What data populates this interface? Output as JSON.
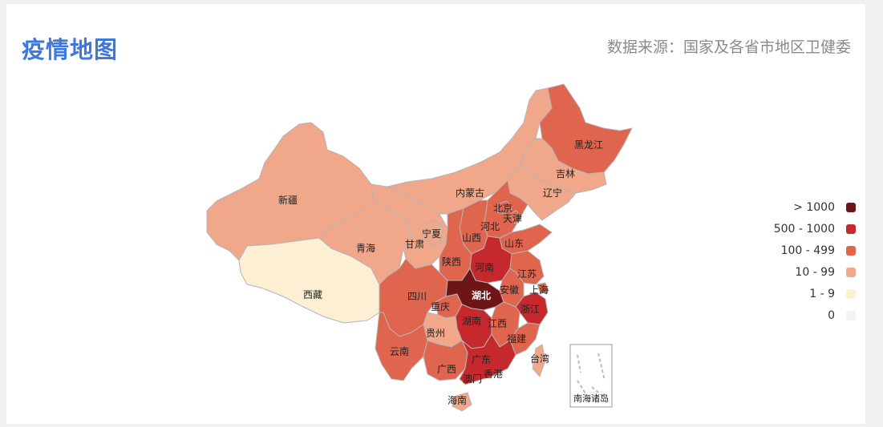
{
  "header": {
    "title": "疫情地图",
    "source": "数据来源：国家及各省市地区卫健委"
  },
  "legend": [
    {
      "label": "> 1000",
      "color": "#6e1518"
    },
    {
      "label": "500 - 1000",
      "color": "#c6292d"
    },
    {
      "label": "100 - 499",
      "color": "#e0654e"
    },
    {
      "label": "10 - 99",
      "color": "#f0a78a"
    },
    {
      "label": "1 - 9",
      "color": "#fcefd4"
    },
    {
      "label": "0",
      "color": "#f2f2f2"
    }
  ],
  "provinces": {
    "xinjiang": "新疆",
    "xizang": "西藏",
    "qinghai": "青海",
    "gansu": "甘肃",
    "neimenggu": "内蒙古",
    "heilongjiang": "黑龙江",
    "jilin": "吉林",
    "liaoning": "辽宁",
    "beijing": "北京",
    "tianjin": "天津",
    "hebei": "河北",
    "shanxi": "山西",
    "shandong": "山东",
    "ningxia": "宁夏",
    "shaanxi": "陕西",
    "henan": "河南",
    "jiangsu": "江苏",
    "anhui": "安徽",
    "shanghai": "上海",
    "sichuan": "四川",
    "chongqing": "重庆",
    "hubei": "湖北",
    "zhejiang": "浙江",
    "hunan": "湖南",
    "jiangxi": "江西",
    "guizhou": "贵州",
    "fujian": "福建",
    "yunnan": "云南",
    "guangxi": "广西",
    "guangdong": "广东",
    "taiwan": "台湾",
    "aomen": "澳门",
    "xianggang": "香港",
    "hainan": "海南",
    "nanhai": "南海诸岛"
  }
}
